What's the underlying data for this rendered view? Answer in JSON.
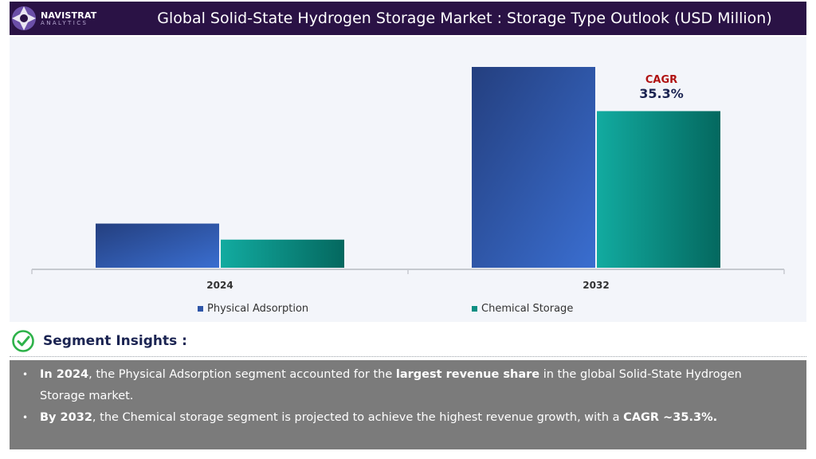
{
  "header": {
    "logo_brand": "NAVISTRAT",
    "logo_sub": "ANALYTICS",
    "title": "Global Solid-State Hydrogen Storage Market : Storage Type Outlook (USD Million)"
  },
  "chart_data": {
    "type": "bar",
    "categories": [
      "2024",
      "2032"
    ],
    "series": [
      {
        "name": "Physical Adsorption",
        "values": [
          22,
          100
        ],
        "color": "#3a63c4"
      },
      {
        "name": "Chemical Storage",
        "values": [
          14,
          78
        ],
        "color": "#0f9b8e"
      }
    ],
    "ylim": [
      0,
      100
    ],
    "grid": false,
    "legend": "bottom",
    "annotation": {
      "label": "CAGR",
      "value": "35.3%",
      "label_color": "#b01313",
      "value_color": "#1b2452"
    }
  },
  "insights": {
    "title": "Segment Insights :",
    "bullets": [
      {
        "parts": [
          {
            "text": "In 2024",
            "bold": true
          },
          {
            "text": ", the Physical Adsorption segment accounted for the ",
            "bold": false
          },
          {
            "text": "largest revenue share",
            "bold": true
          },
          {
            "text": " in the global Solid-State Hydrogen Storage market.",
            "bold": false
          }
        ]
      },
      {
        "parts": [
          {
            "text": "By 2032",
            "bold": true
          },
          {
            "text": ", the Chemical storage segment is projected to achieve the highest revenue growth, with a ",
            "bold": false
          },
          {
            "text": "CAGR ~35.3%.",
            "bold": true
          }
        ]
      }
    ]
  }
}
